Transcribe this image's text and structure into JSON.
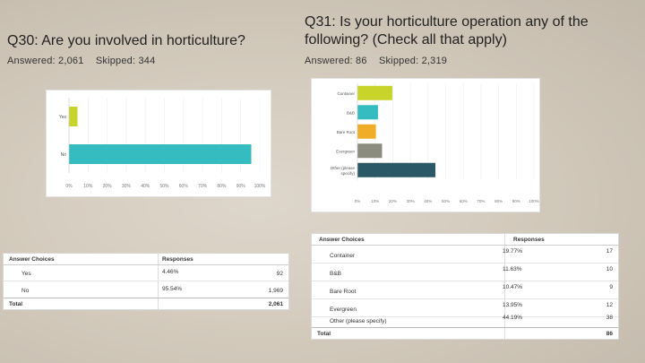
{
  "q30": {
    "title": "Q30: Are you involved in horticulture?",
    "answered": "Answered: 2,061",
    "skipped": "Skipped: 344",
    "table": {
      "col_choice": "Answer Choices",
      "col_resp": "Responses",
      "rows": [
        {
          "label": "Yes",
          "pct": "4.46%",
          "count": "92"
        },
        {
          "label": "No",
          "pct": "95.54%",
          "count": "1,969"
        }
      ],
      "total_label": "Total",
      "total": "2,061"
    }
  },
  "q31": {
    "title": "Q31: Is your horticulture operation any of the following? (Check all that apply)",
    "answered": "Answered: 86",
    "skipped": "Skipped: 2,319",
    "table": {
      "col_choice": "Answer Choices",
      "col_resp": "Responses",
      "rows": [
        {
          "label": "Container",
          "pct": "19.77%",
          "count": "17"
        },
        {
          "label": "B&B",
          "pct": "11.63%",
          "count": "10"
        },
        {
          "label": "Bare Root",
          "pct": "10.47%",
          "count": "9"
        },
        {
          "label": "Evergreen",
          "pct": "13.95%",
          "count": "12"
        },
        {
          "label": "Other (please specify)",
          "pct": "44.19%",
          "count": "38"
        }
      ],
      "total_label": "Total",
      "total": "86"
    }
  },
  "colors": {
    "yes": "#c8d42a",
    "no": "#35bcc0",
    "container": "#c8d42a",
    "bb": "#35bcc0",
    "bareroot": "#f0ad28",
    "evergreen": "#8c8c7e",
    "other": "#2a5866"
  },
  "chart_data": [
    {
      "type": "bar",
      "orientation": "horizontal",
      "categories": [
        "Yes",
        "No"
      ],
      "values": [
        4.46,
        95.54
      ],
      "xlim": [
        0,
        100
      ],
      "ticks": [
        "0%",
        "10%",
        "20%",
        "30%",
        "40%",
        "50%",
        "60%",
        "70%",
        "80%",
        "90%",
        "100%"
      ],
      "grid": true
    },
    {
      "type": "bar",
      "orientation": "horizontal",
      "categories": [
        "Container",
        "B&B",
        "Bare Root",
        "Evergreen",
        "Other (please specify)"
      ],
      "values": [
        19.77,
        11.63,
        10.47,
        13.95,
        44.19
      ],
      "xlim": [
        0,
        100
      ],
      "ticks": [
        "0%",
        "10%",
        "20%",
        "30%",
        "40%",
        "50%",
        "60%",
        "70%",
        "80%",
        "90%",
        "100%"
      ],
      "grid": true
    }
  ]
}
